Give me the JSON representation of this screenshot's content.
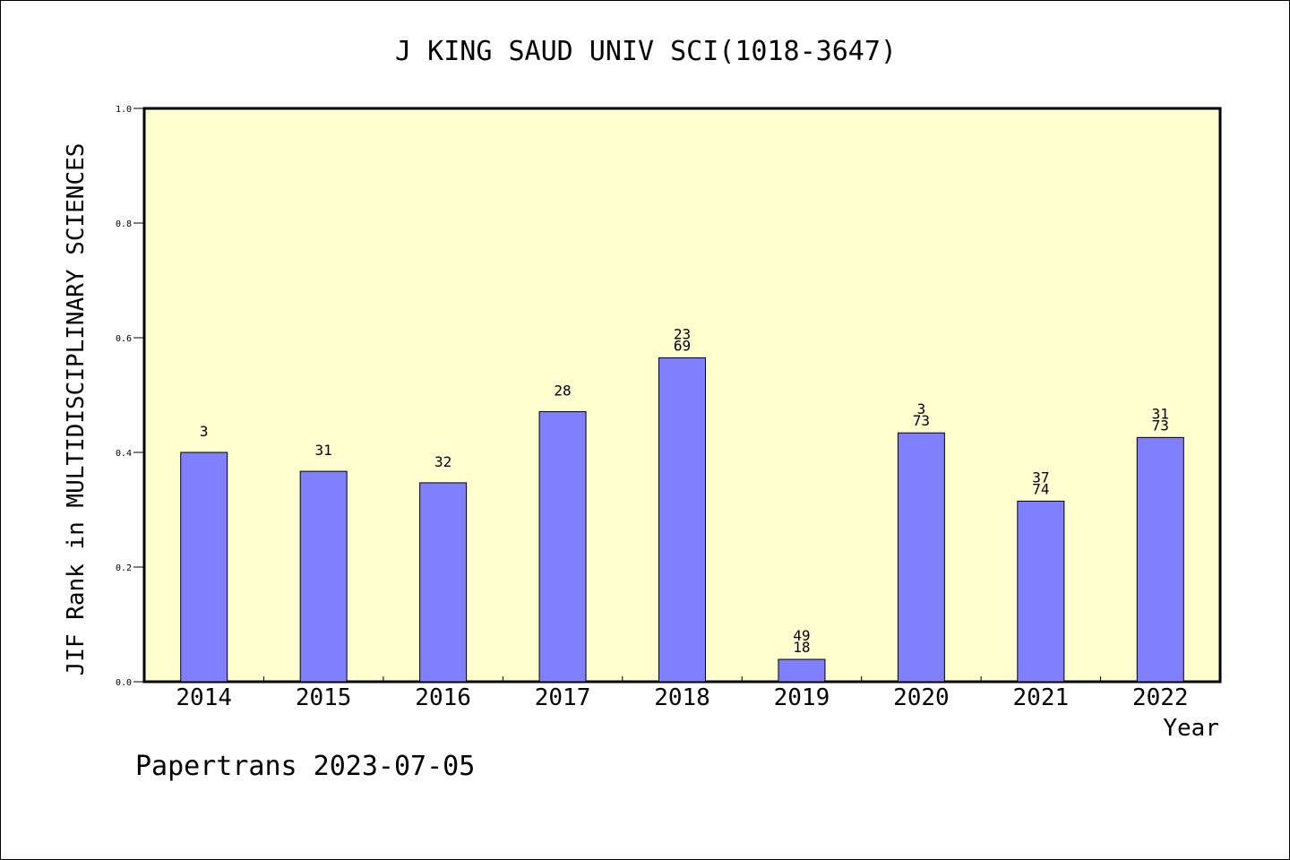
{
  "chart_data": {
    "type": "bar",
    "title": "J KING SAUD UNIV SCI(1018-3647)",
    "xlabel": "Year",
    "ylabel": "JIF Rank in MULTIDISCIPLINARY SCIENCES",
    "ylim": [
      0,
      1.0
    ],
    "yticks": [
      "0.0",
      "0.2",
      "0.4",
      "0.6",
      "0.8",
      "1.0"
    ],
    "categories": [
      "2014",
      "2015",
      "2016",
      "2017",
      "2018",
      "2019",
      "2020",
      "2021",
      "2022"
    ],
    "values": [
      0.4,
      0.367,
      0.347,
      0.471,
      0.565,
      0.039,
      0.434,
      0.315,
      0.426
    ],
    "labels": [
      [
        "3"
      ],
      [
        "31"
      ],
      [
        "32"
      ],
      [
        "28"
      ],
      [
        "23",
        "69"
      ],
      [
        "49",
        "18"
      ],
      [
        "3",
        "73"
      ],
      [
        "37",
        "74"
      ],
      [
        "31",
        "73"
      ]
    ],
    "bar_color": "#8080ff",
    "plot_background": "#ffffd0",
    "grid": false
  },
  "footer": {
    "text": "Papertrans 2023-07-05"
  }
}
